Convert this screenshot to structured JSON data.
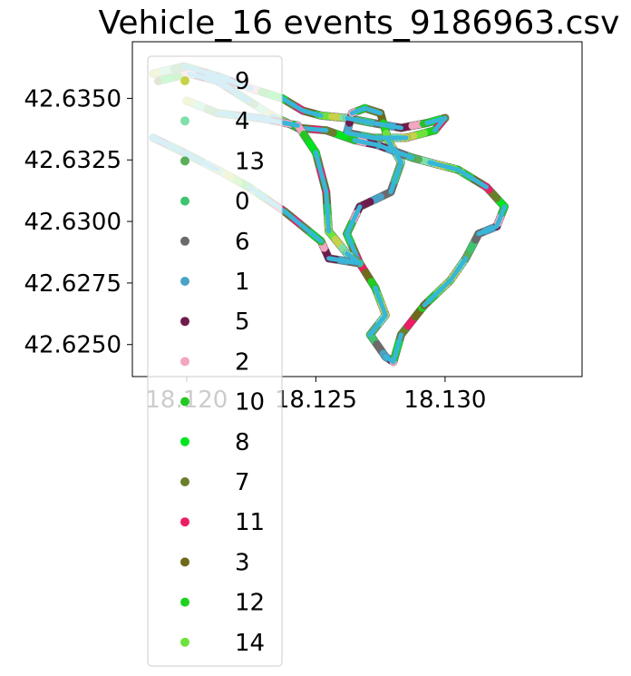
{
  "chart_data": {
    "type": "scatter",
    "title": "Vehicle_16 events_9186963.csv",
    "xlabel": "",
    "ylabel": "",
    "xlim": [
      18.1179,
      18.1353
    ],
    "ylim": [
      42.6237,
      42.6373
    ],
    "x_ticks": [
      "18.120",
      "18.125",
      "18.130"
    ],
    "y_ticks": [
      "42.6250",
      "42.6275",
      "42.6300",
      "42.6325",
      "42.6350"
    ],
    "x_tick_values": [
      18.12,
      18.125,
      18.13
    ],
    "y_tick_values": [
      42.625,
      42.6275,
      42.63,
      42.6325,
      42.635
    ],
    "grid": false,
    "legend_position": "left, overlapping plot",
    "series": [
      {
        "name": "9",
        "color": "#c6d24a"
      },
      {
        "name": "4",
        "color": "#7ee0a8"
      },
      {
        "name": "13",
        "color": "#5aae5a"
      },
      {
        "name": "0",
        "color": "#3cc46e"
      },
      {
        "name": "6",
        "color": "#6b6b6b"
      },
      {
        "name": "1",
        "color": "#4aa3c7"
      },
      {
        "name": "5",
        "color": "#6e1b4c"
      },
      {
        "name": "2",
        "color": "#f2a6bf"
      },
      {
        "name": "10",
        "color": "#22c822"
      },
      {
        "name": "8",
        "color": "#00e61e"
      },
      {
        "name": "7",
        "color": "#6b7f2a"
      },
      {
        "name": "11",
        "color": "#ee1c64"
      },
      {
        "name": "3",
        "color": "#6f6a1a"
      },
      {
        "name": "12",
        "color": "#1ed21e"
      },
      {
        "name": "14",
        "color": "#6ee23c"
      }
    ],
    "route_points": [
      [
        18.1187,
        42.636
      ],
      [
        18.1199,
        42.6363
      ],
      [
        18.1212,
        42.6359
      ],
      [
        18.1225,
        42.6354
      ],
      [
        18.1237,
        42.635
      ],
      [
        18.1245,
        42.6345
      ],
      [
        18.1252,
        42.6343
      ],
      [
        18.1262,
        42.6342
      ],
      [
        18.1272,
        42.634
      ],
      [
        18.1283,
        42.6338
      ],
      [
        18.1293,
        42.634
      ],
      [
        18.13,
        42.6342
      ],
      [
        18.1296,
        42.6337
      ],
      [
        18.1285,
        42.6334
      ],
      [
        18.1272,
        42.6334
      ],
      [
        18.1262,
        42.6336
      ],
      [
        18.1264,
        42.6344
      ],
      [
        18.1269,
        42.6346
      ],
      [
        18.1275,
        42.6344
      ],
      [
        18.1278,
        42.6333
      ],
      [
        18.1283,
        42.6324
      ],
      [
        18.1279,
        42.6312
      ],
      [
        18.1267,
        42.6306
      ],
      [
        18.1262,
        42.6295
      ],
      [
        18.1267,
        42.6283
      ],
      [
        18.1273,
        42.6273
      ],
      [
        18.1277,
        42.6262
      ],
      [
        18.1271,
        42.6254
      ],
      [
        18.1277,
        42.6245
      ],
      [
        18.128,
        42.6243
      ],
      [
        18.1283,
        42.6254
      ],
      [
        18.1292,
        42.6266
      ],
      [
        18.1302,
        42.6276
      ],
      [
        18.1308,
        42.6285
      ],
      [
        18.1313,
        42.6295
      ],
      [
        18.132,
        42.6298
      ],
      [
        18.1323,
        42.6306
      ],
      [
        18.1316,
        42.6314
      ],
      [
        18.1305,
        42.6321
      ],
      [
        18.1294,
        42.6324
      ],
      [
        18.1287,
        42.6326
      ],
      [
        18.1274,
        42.6331
      ],
      [
        18.1265,
        42.6333
      ],
      [
        18.1254,
        42.6337
      ],
      [
        18.1243,
        42.6338
      ],
      [
        18.1233,
        42.6343
      ],
      [
        18.1224,
        42.6349
      ],
      [
        18.1212,
        42.6357
      ],
      [
        18.1201,
        42.636
      ],
      [
        18.1189,
        42.6357
      ]
    ],
    "route_points_2": [
      [
        18.12,
        42.6349
      ],
      [
        18.1212,
        42.6344
      ],
      [
        18.1228,
        42.6342
      ],
      [
        18.1243,
        42.6339
      ],
      [
        18.125,
        42.6328
      ],
      [
        18.1254,
        42.6312
      ],
      [
        18.1255,
        42.6296
      ],
      [
        18.1262,
        42.6287
      ],
      [
        18.1267,
        42.6283
      ],
      [
        18.1255,
        42.6285
      ],
      [
        18.1252,
        42.6292
      ],
      [
        18.1238,
        42.6304
      ],
      [
        18.1224,
        42.6314
      ],
      [
        18.1212,
        42.6321
      ],
      [
        18.1197,
        42.6329
      ],
      [
        18.1187,
        42.6334
      ]
    ]
  }
}
